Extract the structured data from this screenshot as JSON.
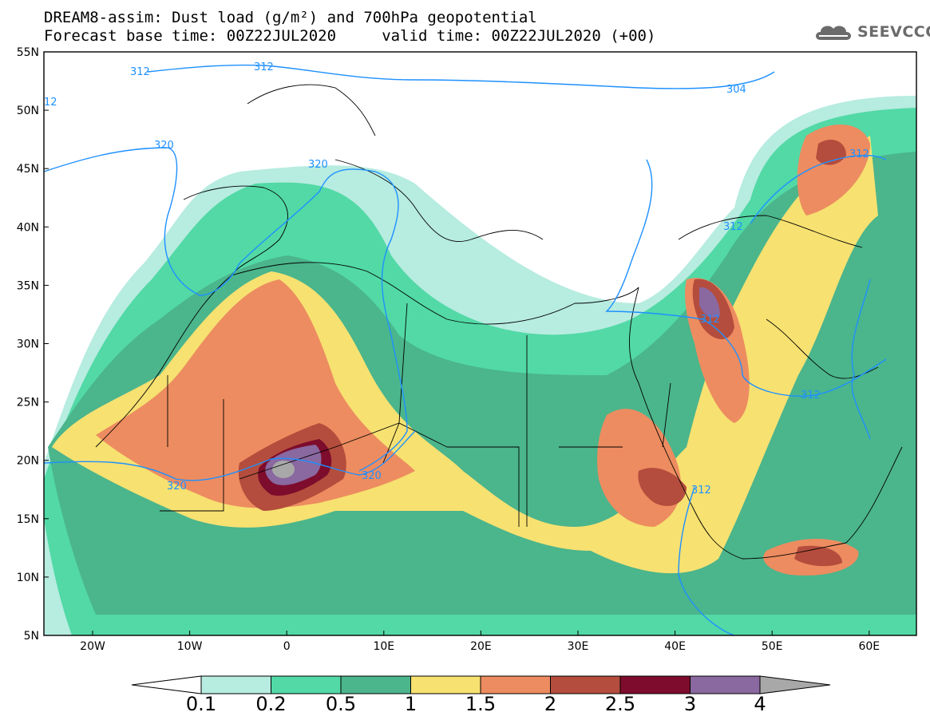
{
  "title": {
    "line1": "DREAM8-assim: Dust load (g/m²) and 700hPa geopotential",
    "line2": "Forecast base time: 00Z22JUL2020     valid time: 00Z22JUL2020 (+00)"
  },
  "logo": {
    "text": "SEEVCCC",
    "icon": "cloud-icon"
  },
  "map": {
    "lat_labels": [
      "55N",
      "50N",
      "45N",
      "40N",
      "35N",
      "30N",
      "25N",
      "20N",
      "15N",
      "10N",
      "5N"
    ],
    "lon_labels": [
      "20W",
      "10W",
      "0",
      "10E",
      "20E",
      "30E",
      "40E",
      "50E",
      "60E"
    ],
    "contour_labels": [
      "312",
      "312",
      "304",
      "12",
      "320",
      "320",
      "320",
      "320",
      "312",
      "312",
      "312",
      "312",
      "312"
    ]
  },
  "colorbar": {
    "labels": [
      "0.1",
      "0.2",
      "0.5",
      "1",
      "1.5",
      "2",
      "2.5",
      "3",
      "4"
    ],
    "colors": [
      "#ffffff",
      "#b7ece0",
      "#52d9a6",
      "#4bb58c",
      "#f7e171",
      "#ed8c60",
      "#b44d3d",
      "#7e0c2c",
      "#8a68a0",
      "#a8a8a8"
    ]
  }
}
